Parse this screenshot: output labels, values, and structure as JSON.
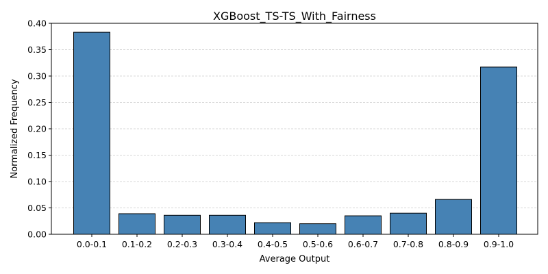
{
  "chart_data": {
    "type": "bar",
    "title": "XGBoost_TS-TS_With_Fairness",
    "xlabel": "Average Output",
    "ylabel": "Normalized Frequency",
    "categories": [
      "0.0-0.1",
      "0.1-0.2",
      "0.2-0.3",
      "0.3-0.4",
      "0.4-0.5",
      "0.5-0.6",
      "0.6-0.7",
      "0.7-0.8",
      "0.8-0.9",
      "0.9-1.0"
    ],
    "values": [
      0.383,
      0.039,
      0.036,
      0.036,
      0.022,
      0.02,
      0.035,
      0.04,
      0.066,
      0.317
    ],
    "ylim": [
      0,
      0.4
    ],
    "yticks": [
      "0.00",
      "0.05",
      "0.10",
      "0.15",
      "0.20",
      "0.25",
      "0.30",
      "0.35",
      "0.40"
    ],
    "grid": "y",
    "bar_color": "#4682b4",
    "edge_color": "#000000"
  }
}
